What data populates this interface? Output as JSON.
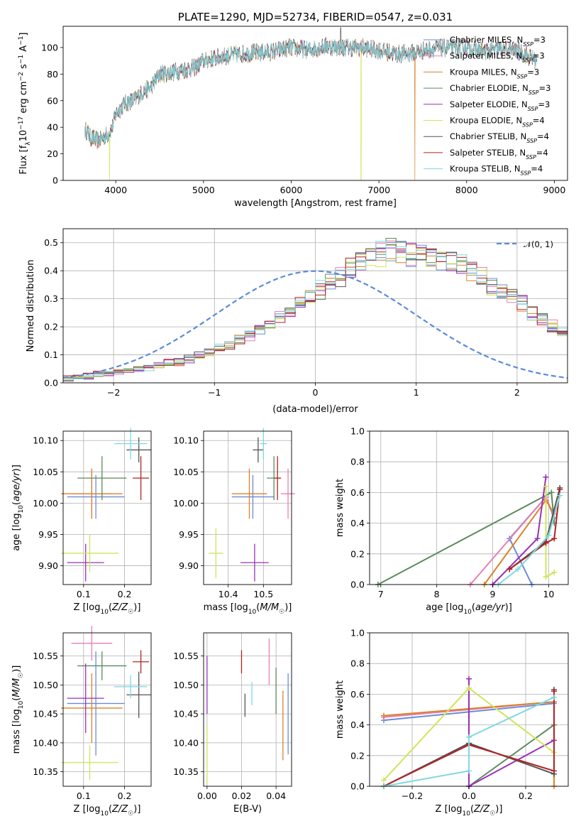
{
  "colors": {
    "Chabrier MILES": "#6a8bd8",
    "Salpeter MILES": "#e87fb6",
    "Kroupa MILES": "#d9822b",
    "Chabrier ELODIE": "#5b8a5e",
    "Salpeter ELODIE": "#9a30b8",
    "Kroupa ELODIE": "#cfe55a",
    "Chabrier STELIB": "#555555",
    "Salpeter STELIB": "#b22222",
    "Kroupa STELIB": "#80d8e0"
  },
  "chart_data": [
    {
      "id": "spectrum",
      "type": "line",
      "title": "PLATE=1290, MJD=52734, FIBERID=0547, z=0.031",
      "xlabel": "wavelength [Angstrom, rest frame]",
      "ylabel": "Flux [f_λ10^-17 erg cm^-2 s^-1 A^-1]",
      "xlim": [
        3400,
        9150
      ],
      "ylim": [
        0,
        116
      ],
      "xticks": [
        "4000",
        "5000",
        "6000",
        "7000",
        "8000",
        "9000"
      ],
      "yticks": [
        "0",
        "20",
        "40",
        "60",
        "80",
        "100"
      ],
      "legend_position": "upper right",
      "legend": [
        {
          "model": "Chabrier MILES",
          "nssp": "3"
        },
        {
          "model": "Salpeter MILES",
          "nssp": "3"
        },
        {
          "model": "Kroupa MILES",
          "nssp": "3"
        },
        {
          "model": "Chabrier ELODIE",
          "nssp": "3"
        },
        {
          "model": "Salpeter ELODIE",
          "nssp": "3"
        },
        {
          "model": "Kroupa ELODIE",
          "nssp": "4"
        },
        {
          "model": "Chabrier STELIB",
          "nssp": "4"
        },
        {
          "model": "Salpeter STELIB",
          "nssp": "4"
        },
        {
          "model": "Kroupa STELIB",
          "nssp": "4"
        }
      ],
      "continuum": {
        "x": [
          3650,
          3720,
          3800,
          3900,
          3960,
          4000,
          4100,
          4200,
          4300,
          4400,
          4500,
          4700,
          4900,
          5000,
          5200,
          5400,
          5600,
          5800,
          6000,
          6200,
          6400,
          6600,
          6800,
          7000,
          7200,
          7400,
          7600,
          7800,
          8000,
          8200,
          8400,
          8600,
          8800
        ],
        "y": [
          38,
          32,
          30,
          34,
          40,
          50,
          58,
          60,
          66,
          70,
          80,
          82,
          85,
          90,
          93,
          95,
          96,
          97,
          100,
          98,
          101,
          100,
          100,
          98,
          95,
          96,
          99,
          100,
          100,
          97,
          99,
          97,
          90
        ]
      },
      "dips": [
        {
          "x": 3930,
          "y": 0,
          "series": "Kroupa ELODIE"
        },
        {
          "x": 6795,
          "y": 0,
          "series": "Kroupa ELODIE"
        },
        {
          "x": 7410,
          "y": 0,
          "series": "Kroupa MILES"
        }
      ],
      "spike": {
        "x": 6563,
        "y": 115
      }
    },
    {
      "id": "residuals",
      "type": "histogram",
      "xlabel": "(data-model)/error",
      "ylabel": "Normed distribution",
      "xlim": [
        -2.5,
        2.5
      ],
      "ylim": [
        0,
        0.55
      ],
      "xticks": [
        "−2",
        "−1",
        "0",
        "1",
        "2"
      ],
      "yticks": [
        "0.0",
        "0.1",
        "0.2",
        "0.3",
        "0.4",
        "0.5"
      ],
      "legend": "𝒩(0, 1)",
      "legend_position": "upper right",
      "bin_width": 0.1,
      "bin_start": -2.5,
      "base_profile": [
        0.015,
        0.02,
        0.025,
        0.03,
        0.035,
        0.04,
        0.045,
        0.05,
        0.055,
        0.06,
        0.07,
        0.075,
        0.085,
        0.095,
        0.105,
        0.12,
        0.135,
        0.15,
        0.17,
        0.19,
        0.21,
        0.235,
        0.26,
        0.285,
        0.31,
        0.33,
        0.36,
        0.38,
        0.41,
        0.43,
        0.45,
        0.46,
        0.47,
        0.47,
        0.46,
        0.46,
        0.45,
        0.44,
        0.43,
        0.42,
        0.4,
        0.38,
        0.35,
        0.33,
        0.31,
        0.28,
        0.25,
        0.23,
        0.2,
        0.18,
        0.16,
        0.14,
        0.125,
        0.11,
        0.1,
        0.09,
        0.08,
        0.07,
        0.06,
        0.055,
        0.05,
        0.045,
        0.04,
        0.035,
        0.03,
        0.028,
        0.025,
        0.022,
        0.02,
        0.018,
        0.016,
        0.015,
        0.014,
        0.013,
        0.012,
        0.011,
        0.01,
        0.01,
        0.01,
        0.01
      ]
    },
    {
      "id": "age-vs-Z",
      "type": "scatter",
      "xlabel": "Z [log10(Z/Z☉)]",
      "ylabel": "age  [log10(age/yr)]",
      "xlim": [
        0.05,
        0.265
      ],
      "ylim": [
        9.87,
        10.115
      ],
      "xticks": [
        "0.1",
        "0.2"
      ],
      "yticks": [
        "9.90",
        "9.95",
        "10.00",
        "10.05",
        "10.10"
      ],
      "points": [
        {
          "series": "Chabrier MILES",
          "x": 0.13,
          "y": 10.01,
          "xerr": 0.07,
          "yerr": 0.035
        },
        {
          "series": "Salpeter MILES",
          "x": 0.12,
          "y": 10.015,
          "xerr": 0.05,
          "yerr": 0.04
        },
        {
          "series": "Kroupa MILES",
          "x": 0.12,
          "y": 10.015,
          "xerr": 0.075,
          "yerr": 0.04
        },
        {
          "series": "Chabrier ELODIE",
          "x": 0.145,
          "y": 10.04,
          "xerr": 0.06,
          "yerr": 0.035
        },
        {
          "series": "Salpeter ELODIE",
          "x": 0.105,
          "y": 9.905,
          "xerr": 0.045,
          "yerr": 0.03
        },
        {
          "series": "Kroupa ELODIE",
          "x": 0.115,
          "y": 9.92,
          "xerr": 0.07,
          "yerr": 0.03
        },
        {
          "series": "Chabrier STELIB",
          "x": 0.235,
          "y": 10.085,
          "xerr": 0.03,
          "yerr": 0.02
        },
        {
          "series": "Salpeter STELIB",
          "x": 0.24,
          "y": 10.04,
          "xerr": 0.02,
          "yerr": 0.035
        },
        {
          "series": "Kroupa STELIB",
          "x": 0.215,
          "y": 10.095,
          "xerr": 0.04,
          "yerr": 0.025
        }
      ]
    },
    {
      "id": "age-vs-mass",
      "type": "scatter",
      "xlabel": "mass [log10(M/M☉)]",
      "xlim": [
        10.33,
        10.58
      ],
      "ylim": [
        9.87,
        10.115
      ],
      "xticks": [
        "10.4",
        "10.5"
      ],
      "yticks": [
        "9.90",
        "9.95",
        "10.00",
        "10.05",
        "10.10"
      ],
      "points": [
        {
          "series": "Chabrier MILES",
          "x": 10.47,
          "y": 10.01,
          "xerr": 0.06,
          "yerr": 0.035
        },
        {
          "series": "Salpeter MILES",
          "x": 10.57,
          "y": 10.015,
          "xerr": 0.02,
          "yerr": 0.04
        },
        {
          "series": "Kroupa MILES",
          "x": 10.46,
          "y": 10.015,
          "xerr": 0.05,
          "yerr": 0.04
        },
        {
          "series": "Chabrier ELODIE",
          "x": 10.53,
          "y": 10.04,
          "xerr": 0.02,
          "yerr": 0.035
        },
        {
          "series": "Salpeter ELODIE",
          "x": 10.475,
          "y": 9.905,
          "xerr": 0.04,
          "yerr": 0.03
        },
        {
          "series": "Kroupa ELODIE",
          "x": 10.365,
          "y": 9.92,
          "xerr": 0.02,
          "yerr": 0.04
        },
        {
          "series": "Chabrier STELIB",
          "x": 10.485,
          "y": 10.085,
          "xerr": 0.015,
          "yerr": 0.02
        },
        {
          "series": "Salpeter STELIB",
          "x": 10.54,
          "y": 10.04,
          "xerr": 0.01,
          "yerr": 0.035
        },
        {
          "series": "Kroupa STELIB",
          "x": 10.5,
          "y": 10.095,
          "xerr": 0.01,
          "yerr": 0.025
        }
      ]
    },
    {
      "id": "weight-vs-age",
      "type": "line",
      "xlabel": "age  [log10(age/yr)]",
      "ylabel": "mass weight",
      "xlim": [
        6.8,
        10.35
      ],
      "ylim": [
        0,
        1.0
      ],
      "xticks": [
        "7",
        "8",
        "9",
        "10"
      ],
      "yticks": [
        "0.0",
        "0.2",
        "0.4",
        "0.6",
        "0.8",
        "1.0"
      ],
      "series": [
        {
          "name": "Chabrier MILES",
          "x": [
            9.7,
            9.3,
            9.95,
            10.1
          ],
          "y": [
            0.0,
            0.3,
            0.57,
            0.43
          ]
        },
        {
          "name": "Salpeter MILES",
          "x": [
            8.6,
            9.95,
            10.1
          ],
          "y": [
            0.0,
            0.57,
            0.44
          ]
        },
        {
          "name": "Kroupa MILES",
          "x": [
            8.85,
            9.95,
            10.1
          ],
          "y": [
            0.0,
            0.55,
            0.46
          ]
        },
        {
          "name": "Chabrier ELODIE",
          "x": [
            6.95,
            10.05,
            10.1
          ],
          "y": [
            0.0,
            0.6,
            0.4
          ]
        },
        {
          "name": "Salpeter ELODIE",
          "x": [
            9.0,
            9.8,
            9.95
          ],
          "y": [
            0.0,
            0.3,
            0.7
          ]
        },
        {
          "name": "Kroupa ELODIE",
          "x": [
            9.95,
            9.95,
            10.1
          ],
          "y": [
            0.64,
            0.05,
            0.08
          ]
        },
        {
          "name": "Chabrier STELIB",
          "x": [
            9.3,
            9.95,
            10.2
          ],
          "y": [
            0.1,
            0.28,
            0.63
          ]
        },
        {
          "name": "Salpeter STELIB",
          "x": [
            9.3,
            9.95,
            10.1,
            10.2
          ],
          "y": [
            0.1,
            0.27,
            0.3,
            0.62
          ]
        },
        {
          "name": "Kroupa STELIB",
          "x": [
            9.1,
            9.45,
            10.0,
            10.2
          ],
          "y": [
            0.0,
            0.1,
            0.32,
            0.58
          ]
        }
      ]
    },
    {
      "id": "mass-vs-Z",
      "type": "scatter",
      "xlabel": "Z [log10(Z/Z☉)]",
      "ylabel": "mass [log10(M/M☉)]",
      "xlim": [
        0.05,
        0.265
      ],
      "ylim": [
        10.325,
        10.59
      ],
      "xticks": [
        "0.1",
        "0.2"
      ],
      "yticks": [
        "10.35",
        "10.40",
        "10.45",
        "10.50",
        "10.55"
      ],
      "points": [
        {
          "series": "Chabrier MILES",
          "x": 0.13,
          "y": 10.468,
          "xerr": 0.07,
          "yerr": 0.09
        },
        {
          "series": "Salpeter MILES",
          "x": 0.12,
          "y": 10.572,
          "xerr": 0.05,
          "yerr": 0.03
        },
        {
          "series": "Kroupa MILES",
          "x": 0.12,
          "y": 10.46,
          "xerr": 0.075,
          "yerr": 0.06
        },
        {
          "series": "Chabrier ELODIE",
          "x": 0.145,
          "y": 10.533,
          "xerr": 0.06,
          "yerr": 0.025
        },
        {
          "series": "Salpeter ELODIE",
          "x": 0.105,
          "y": 10.477,
          "xerr": 0.045,
          "yerr": 0.06
        },
        {
          "series": "Kroupa ELODIE",
          "x": 0.115,
          "y": 10.366,
          "xerr": 0.07,
          "yerr": 0.03
        },
        {
          "series": "Chabrier STELIB",
          "x": 0.235,
          "y": 10.483,
          "xerr": 0.03,
          "yerr": 0.04
        },
        {
          "series": "Salpeter STELIB",
          "x": 0.24,
          "y": 10.54,
          "xerr": 0.02,
          "yerr": 0.02
        },
        {
          "series": "Kroupa STELIB",
          "x": 0.215,
          "y": 10.497,
          "xerr": 0.04,
          "yerr": 0.02
        }
      ]
    },
    {
      "id": "mass-vs-EBV",
      "type": "scatter",
      "xlabel": "E(B-V)",
      "xlim": [
        -0.002,
        0.049
      ],
      "ylim": [
        10.325,
        10.59
      ],
      "xticks": [
        "0.00",
        "0.02",
        "0.04"
      ],
      "yticks": [
        "10.35",
        "10.40",
        "10.45",
        "10.50",
        "10.55"
      ],
      "points": [
        {
          "series": "Chabrier MILES",
          "x": 0.047,
          "y": 10.45,
          "xerr": 0,
          "yerr": 0.07
        },
        {
          "series": "Salpeter MILES",
          "x": 0.036,
          "y": 10.54,
          "xerr": 0,
          "yerr": 0.04
        },
        {
          "series": "Kroupa MILES",
          "x": 0.044,
          "y": 10.43,
          "xerr": 0,
          "yerr": 0.06
        },
        {
          "series": "Chabrier ELODIE",
          "x": 0.04,
          "y": 10.49,
          "xerr": 0,
          "yerr": 0.04
        },
        {
          "series": "Salpeter ELODIE",
          "x": 0.0,
          "y": 10.5,
          "xerr": 0,
          "yerr": 0.05
        },
        {
          "series": "Kroupa ELODIE",
          "x": 0.0,
          "y": 10.38,
          "xerr": 0,
          "yerr": 0.05
        },
        {
          "series": "Chabrier STELIB",
          "x": 0.022,
          "y": 10.465,
          "xerr": 0,
          "yerr": 0.02
        },
        {
          "series": "Salpeter STELIB",
          "x": 0.02,
          "y": 10.54,
          "xerr": 0,
          "yerr": 0.02
        },
        {
          "series": "Kroupa STELIB",
          "x": 0.026,
          "y": 10.485,
          "xerr": 0,
          "yerr": 0.02
        }
      ]
    },
    {
      "id": "weight-vs-Z",
      "type": "line",
      "xlabel": "Z [log10(Z/Z☉)]",
      "ylabel": "mass weight",
      "xlim": [
        -0.35,
        0.35
      ],
      "ylim": [
        0,
        1.0
      ],
      "xticks": [
        "−0.2",
        "0.0",
        "0.2"
      ],
      "yticks": [
        "0.0",
        "0.2",
        "0.4",
        "0.6",
        "0.8",
        "1.0"
      ],
      "series": [
        {
          "name": "Chabrier MILES",
          "x": [
            -0.3,
            0.3
          ],
          "y": [
            0.43,
            0.54
          ]
        },
        {
          "name": "Salpeter MILES",
          "x": [
            -0.3,
            0.3
          ],
          "y": [
            0.45,
            0.55
          ]
        },
        {
          "name": "Kroupa MILES",
          "x": [
            -0.3,
            0.3,
            0.3
          ],
          "y": [
            0.46,
            0.55,
            0.0
          ]
        },
        {
          "name": "Chabrier ELODIE",
          "x": [
            0.0,
            0.3
          ],
          "y": [
            0.0,
            0.4
          ]
        },
        {
          "name": "Salpeter ELODIE",
          "x": [
            0.0,
            0.0,
            0.3
          ],
          "y": [
            0.7,
            0.0,
            0.3
          ]
        },
        {
          "name": "Kroupa ELODIE",
          "x": [
            -0.3,
            0.0,
            0.3
          ],
          "y": [
            0.04,
            0.64,
            0.22
          ]
        },
        {
          "name": "Chabrier STELIB",
          "x": [
            -0.3,
            0.0,
            0.3,
            0.3
          ],
          "y": [
            0.0,
            0.28,
            0.08,
            0.63
          ]
        },
        {
          "name": "Salpeter STELIB",
          "x": [
            -0.3,
            0.0,
            0.3,
            0.3
          ],
          "y": [
            0.0,
            0.27,
            0.1,
            0.62
          ]
        },
        {
          "name": "Kroupa STELIB",
          "x": [
            -0.3,
            0.0,
            0.0,
            0.3
          ],
          "y": [
            0.0,
            0.1,
            0.32,
            0.58
          ]
        }
      ]
    }
  ]
}
